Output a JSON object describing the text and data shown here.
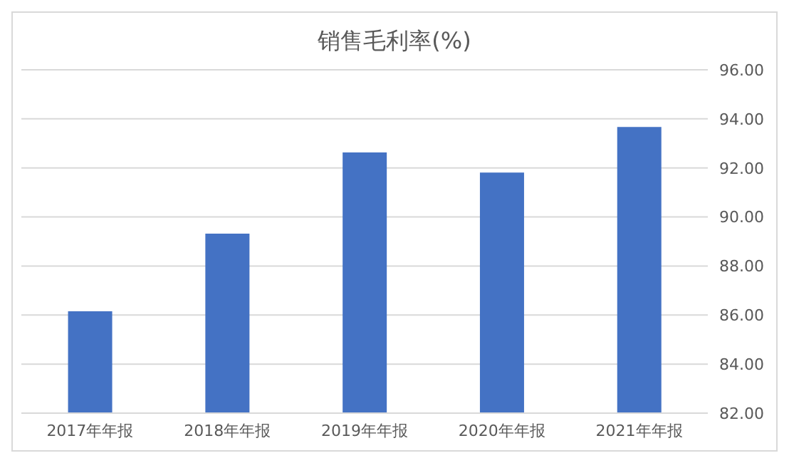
{
  "chart_data": {
    "type": "bar",
    "title": "销售毛利率(%)",
    "categories": [
      "2017年年报",
      "2018年年报",
      "2019年年报",
      "2020年年报",
      "2021年年报"
    ],
    "values": [
      86.15,
      89.32,
      92.63,
      91.81,
      93.67
    ],
    "color": "#4472c4",
    "ylim": [
      82,
      96
    ],
    "yticks": [
      {
        "value": 82,
        "label": "82.00"
      },
      {
        "value": 84,
        "label": "84.00"
      },
      {
        "value": 86,
        "label": "86.00"
      },
      {
        "value": 88,
        "label": "88.00"
      },
      {
        "value": 90,
        "label": "90.00"
      },
      {
        "value": 92,
        "label": "92.00"
      },
      {
        "value": 94,
        "label": "94.00"
      },
      {
        "value": 96,
        "label": "96.00"
      }
    ],
    "grid": "y"
  }
}
